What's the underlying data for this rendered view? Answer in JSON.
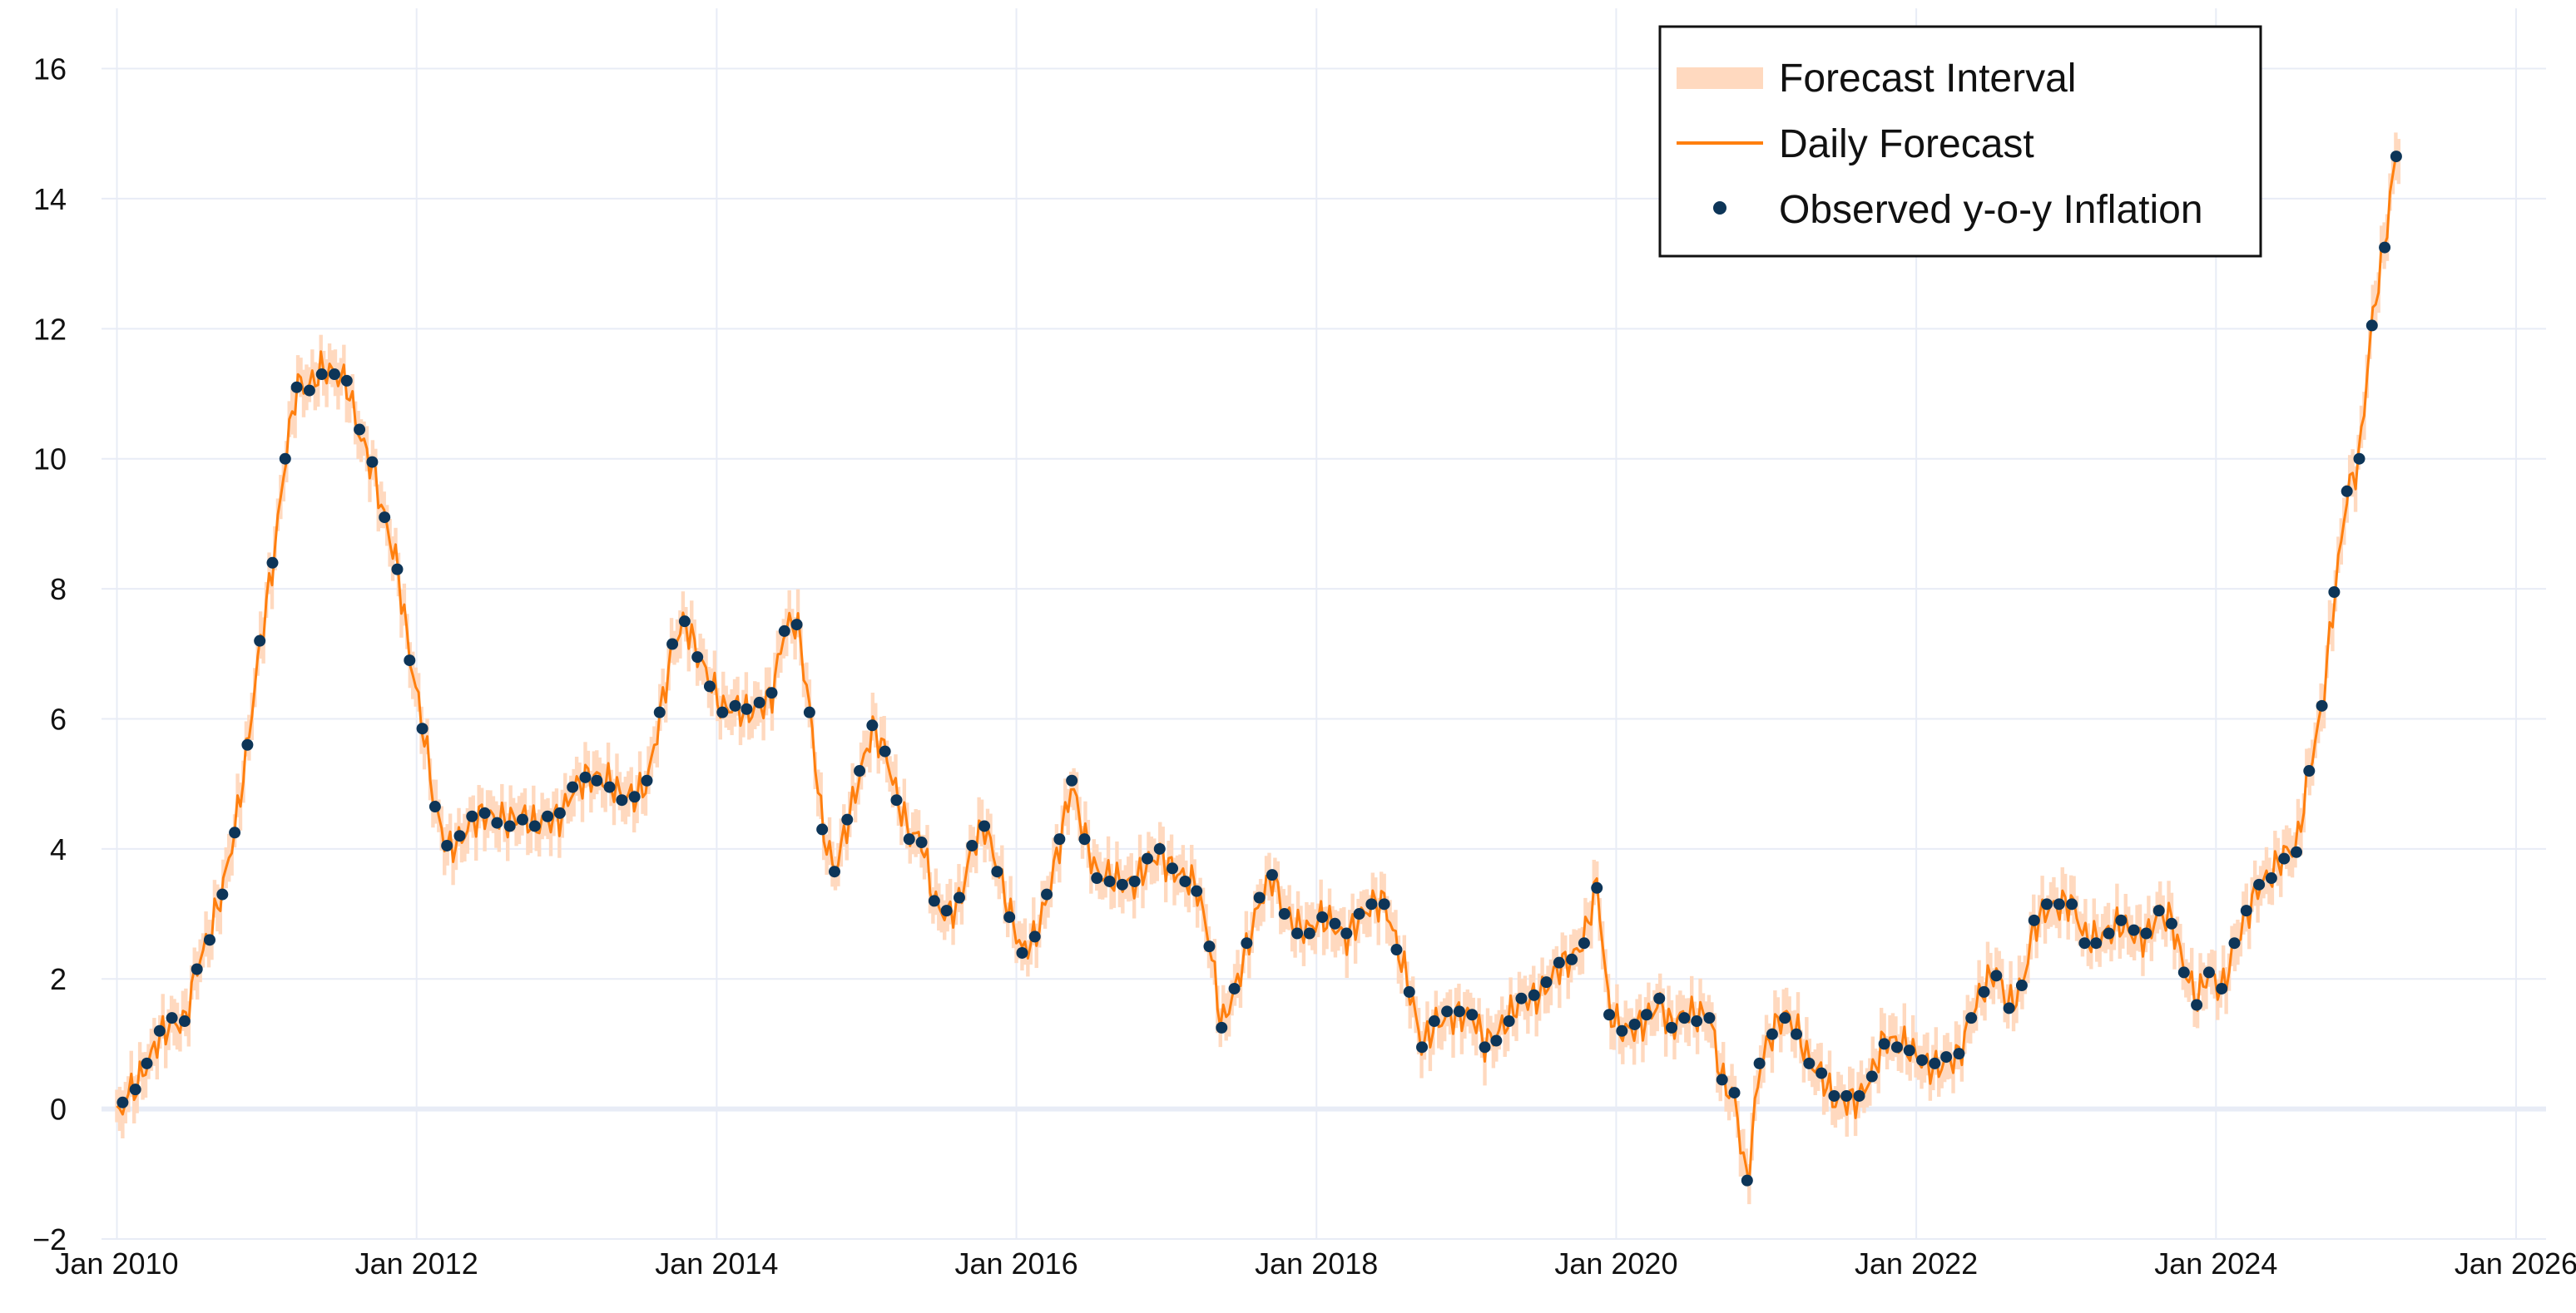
{
  "chart_data": {
    "type": "line",
    "title": "",
    "xlabel": "",
    "ylabel": "",
    "x_range": [
      "2009-10-15",
      "2026-03-15"
    ],
    "y_range": [
      -2,
      16.8
    ],
    "grid": true,
    "legend_placement": "top-right",
    "x_ticks": [
      "Jan 2010",
      "Jan 2012",
      "Jan 2014",
      "Jan 2016",
      "Jan 2018",
      "Jan 2020",
      "Jan 2022",
      "Jan 2024",
      "Jan 2026"
    ],
    "x_tick_dates": [
      "2010-01-01",
      "2012-01-01",
      "2014-01-01",
      "2016-01-01",
      "2018-01-01",
      "2020-01-01",
      "2022-01-01",
      "2024-01-01",
      "2026-01-01"
    ],
    "y_ticks": [
      "−2",
      "0",
      "2",
      "4",
      "6",
      "8",
      "10",
      "12",
      "14",
      "16"
    ],
    "y_tick_values": [
      -2,
      0,
      2,
      4,
      6,
      8,
      10,
      12,
      14,
      16
    ],
    "colors": {
      "interval": "#ffd9bf",
      "forecast": "#ff7f0e",
      "observed": "#0d3558",
      "grid": "#e8ecf6",
      "zero": "#e8ecf6"
    },
    "legend": [
      {
        "label": "Forecast Interval",
        "kind": "band"
      },
      {
        "label": "Daily Forecast",
        "kind": "line"
      },
      {
        "label": "Observed y-o-y Inflation",
        "kind": "marker"
      }
    ],
    "observed": {
      "x": [
        "2010-01-15",
        "2010-02-15",
        "2010-03-15",
        "2010-04-15",
        "2010-05-15",
        "2010-06-15",
        "2010-07-15",
        "2010-08-15",
        "2010-09-15",
        "2010-10-15",
        "2010-11-15",
        "2010-12-15",
        "2011-01-15",
        "2011-02-15",
        "2011-03-15",
        "2011-04-15",
        "2011-05-15",
        "2011-06-15",
        "2011-07-15",
        "2011-08-15",
        "2011-09-15",
        "2011-10-15",
        "2011-11-15",
        "2011-12-15",
        "2012-01-15",
        "2012-02-15",
        "2012-03-15",
        "2012-04-15",
        "2012-05-15",
        "2012-06-15",
        "2012-07-15",
        "2012-08-15",
        "2012-09-15",
        "2012-10-15",
        "2012-11-15",
        "2012-12-15",
        "2013-01-15",
        "2013-02-15",
        "2013-03-15",
        "2013-04-15",
        "2013-05-15",
        "2013-06-15",
        "2013-07-15",
        "2013-08-15",
        "2013-09-15",
        "2013-10-15",
        "2013-11-15",
        "2013-12-15",
        "2014-01-15",
        "2014-02-15",
        "2014-03-15",
        "2014-04-15",
        "2014-05-15",
        "2014-06-15",
        "2014-07-15",
        "2014-08-15",
        "2014-09-15",
        "2014-10-15",
        "2014-11-15",
        "2014-12-15",
        "2015-01-15",
        "2015-02-15",
        "2015-03-15",
        "2015-04-15",
        "2015-05-15",
        "2015-06-15",
        "2015-07-15",
        "2015-08-15",
        "2015-09-15",
        "2015-10-15",
        "2015-11-15",
        "2015-12-15",
        "2016-01-15",
        "2016-02-15",
        "2016-03-15",
        "2016-04-15",
        "2016-05-15",
        "2016-06-15",
        "2016-07-15",
        "2016-08-15",
        "2016-09-15",
        "2016-10-15",
        "2016-11-15",
        "2016-12-15",
        "2017-01-15",
        "2017-02-15",
        "2017-03-15",
        "2017-04-15",
        "2017-05-15",
        "2017-06-15",
        "2017-07-15",
        "2017-08-15",
        "2017-09-15",
        "2017-10-15",
        "2017-11-15",
        "2017-12-15",
        "2018-01-15",
        "2018-02-15",
        "2018-03-15",
        "2018-04-15",
        "2018-05-15",
        "2018-06-15",
        "2018-07-15",
        "2018-08-15",
        "2018-09-15",
        "2018-10-15",
        "2018-11-15",
        "2018-12-15",
        "2019-01-15",
        "2019-02-15",
        "2019-03-15",
        "2019-04-15",
        "2019-05-15",
        "2019-06-15",
        "2019-07-15",
        "2019-08-15",
        "2019-09-15",
        "2019-10-15",
        "2019-11-15",
        "2019-12-15",
        "2020-01-15",
        "2020-02-15",
        "2020-03-15",
        "2020-04-15",
        "2020-05-15",
        "2020-06-15",
        "2020-07-15",
        "2020-08-15",
        "2020-09-15",
        "2020-10-15",
        "2020-11-15",
        "2020-12-15",
        "2021-01-15",
        "2021-02-15",
        "2021-03-15",
        "2021-04-15",
        "2021-05-15",
        "2021-06-15",
        "2021-07-15",
        "2021-08-15",
        "2021-09-15",
        "2021-10-15",
        "2021-11-15",
        "2021-12-15",
        "2022-01-15",
        "2022-02-15",
        "2022-03-15",
        "2022-04-15",
        "2022-05-15",
        "2022-06-15",
        "2022-07-15",
        "2022-08-15",
        "2022-09-15",
        "2022-10-15",
        "2022-11-15",
        "2022-12-15",
        "2023-01-15",
        "2023-02-15",
        "2023-03-15",
        "2023-04-15",
        "2023-05-15",
        "2023-06-15",
        "2023-07-15",
        "2023-08-15",
        "2023-09-15",
        "2023-10-15",
        "2023-11-15",
        "2023-12-15",
        "2024-01-15",
        "2024-02-15",
        "2024-03-15",
        "2024-04-15",
        "2024-05-15",
        "2024-06-15",
        "2024-07-15",
        "2024-08-15",
        "2024-09-15",
        "2024-10-15",
        "2024-11-15",
        "2024-12-15",
        "2025-01-15",
        "2025-02-15",
        "2025-03-15"
      ],
      "y": [
        0.1,
        0.3,
        0.7,
        1.2,
        1.4,
        1.35,
        2.15,
        2.6,
        3.3,
        4.25,
        5.6,
        7.2,
        8.4,
        10.0,
        11.1,
        11.05,
        11.3,
        11.3,
        11.2,
        10.45,
        9.95,
        9.1,
        8.3,
        6.9,
        5.85,
        4.65,
        4.05,
        4.2,
        4.5,
        4.55,
        4.4,
        4.35,
        4.45,
        4.35,
        4.5,
        4.55,
        4.95,
        5.1,
        5.05,
        4.95,
        4.75,
        4.8,
        5.05,
        6.1,
        7.15,
        7.5,
        6.95,
        6.5,
        6.1,
        6.2,
        6.15,
        6.25,
        6.4,
        7.35,
        7.45,
        6.1,
        4.3,
        3.65,
        4.45,
        5.2,
        5.9,
        5.5,
        4.75,
        4.15,
        4.1,
        3.2,
        3.05,
        3.25,
        4.05,
        4.35,
        3.65,
        2.95,
        2.4,
        2.65,
        3.3,
        4.15,
        5.05,
        4.15,
        3.55,
        3.5,
        3.45,
        3.5,
        3.85,
        4.0,
        3.7,
        3.5,
        3.35,
        2.5,
        1.25,
        1.85,
        2.55,
        3.25,
        3.6,
        3.0,
        2.7,
        2.7,
        2.95,
        2.85,
        2.7,
        3.0,
        3.15,
        3.15,
        2.45,
        1.8,
        0.95,
        1.35,
        1.5,
        1.5,
        1.45,
        0.95,
        1.05,
        1.35,
        1.7,
        1.75,
        1.95,
        2.25,
        2.3,
        2.55,
        3.4,
        1.45,
        1.2,
        1.3,
        1.45,
        1.7,
        1.25,
        1.4,
        1.35,
        1.4,
        0.45,
        0.25,
        -1.1,
        0.7,
        1.15,
        1.4,
        1.15,
        0.7,
        0.55,
        0.2,
        0.2,
        0.2,
        0.5,
        1.0,
        0.95,
        0.9,
        0.75,
        0.7,
        0.8,
        0.85,
        1.4,
        1.8,
        2.05,
        1.55,
        1.9,
        2.9,
        3.15,
        3.15,
        3.15,
        2.55,
        2.55,
        2.7,
        2.9,
        2.75,
        2.7,
        3.05,
        2.85,
        2.1,
        1.6,
        2.1,
        1.85,
        2.55,
        3.05,
        3.45,
        3.55,
        3.85,
        3.95,
        5.2,
        6.2,
        7.95,
        9.5,
        10.0,
        12.05,
        13.25,
        14.65
      ]
    }
  }
}
